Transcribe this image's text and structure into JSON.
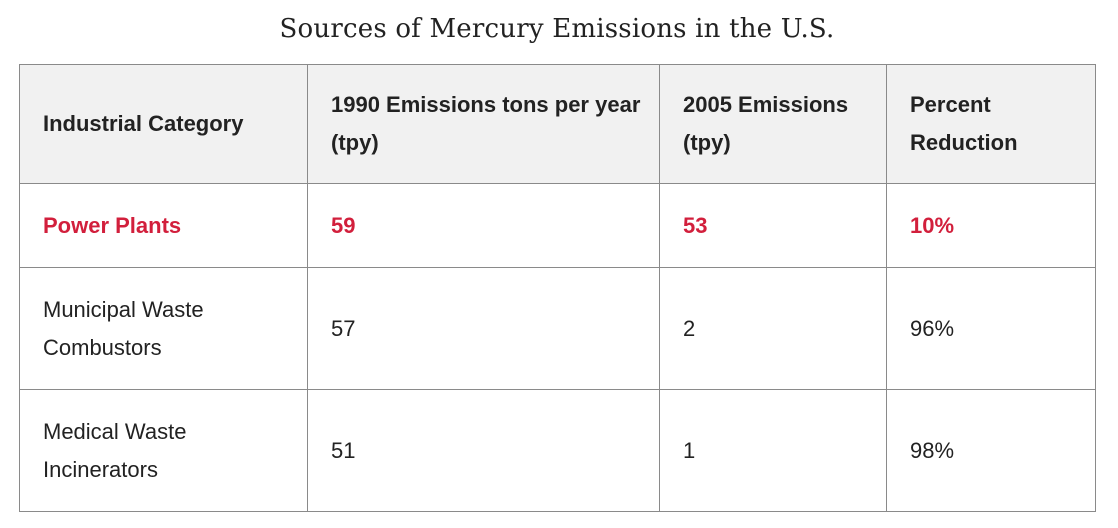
{
  "title": "Sources of Mercury Emissions in the U.S.",
  "table": {
    "headers": [
      "Industrial Category",
      "1990 Emissions tons per year (tpy)",
      "2005 Emissions (tpy)",
      "Percent Reduction"
    ],
    "rows": [
      {
        "category": "Power Plants",
        "e1990": "59",
        "e2005": "53",
        "reduction": "10%"
      },
      {
        "category": "Municipal Waste Combustors",
        "e1990": "57",
        "e2005": "2",
        "reduction": "96%"
      },
      {
        "category": "Medical Waste Incinerators",
        "e1990": "51",
        "e2005": "1",
        "reduction": "98%"
      }
    ]
  },
  "colors": {
    "highlight_text": "#d21f3c",
    "header_background": "#f1f1f1",
    "border": "#8a8a8a",
    "text": "#222222"
  }
}
